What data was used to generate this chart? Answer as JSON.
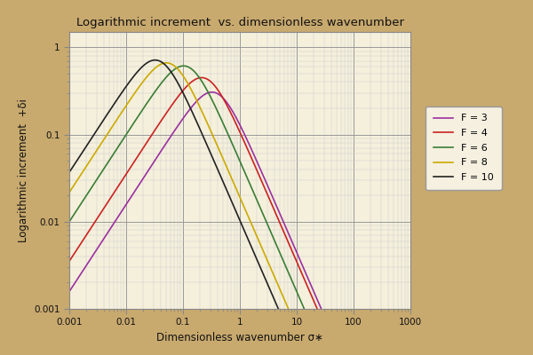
{
  "title": "Logarithmic increment  vs. dimensionless wavenumber",
  "xlabel": "Dimensionless wavenumber σ∗",
  "ylabel": "Logarithmic increment  +δi",
  "xlim": [
    0.001,
    1000
  ],
  "ylim": [
    0.001,
    1.5
  ],
  "froude_numbers": [
    3,
    4,
    6,
    8,
    10
  ],
  "colors": [
    "#9b30a0",
    "#cc2222",
    "#3a7d35",
    "#ccaa00",
    "#222222"
  ],
  "legend_labels": [
    "F = 3",
    "F = 4",
    "F = 6",
    "F = 8",
    "F = 10"
  ],
  "bg_color": "#f5f0dc",
  "outer_bg": "#c8a96e",
  "grid_major_color": "#999999",
  "grid_minor_color": "#cccccc",
  "peak_sigmas": [
    0.38,
    0.25,
    0.12,
    0.06,
    0.038
  ],
  "peak_deltas": [
    0.3,
    0.44,
    0.6,
    0.65,
    0.7
  ],
  "left_slopes": [
    1.0,
    1.0,
    1.0,
    1.0,
    1.0
  ],
  "right_slopes": [
    1.5,
    1.5,
    1.5,
    1.5,
    1.5
  ]
}
